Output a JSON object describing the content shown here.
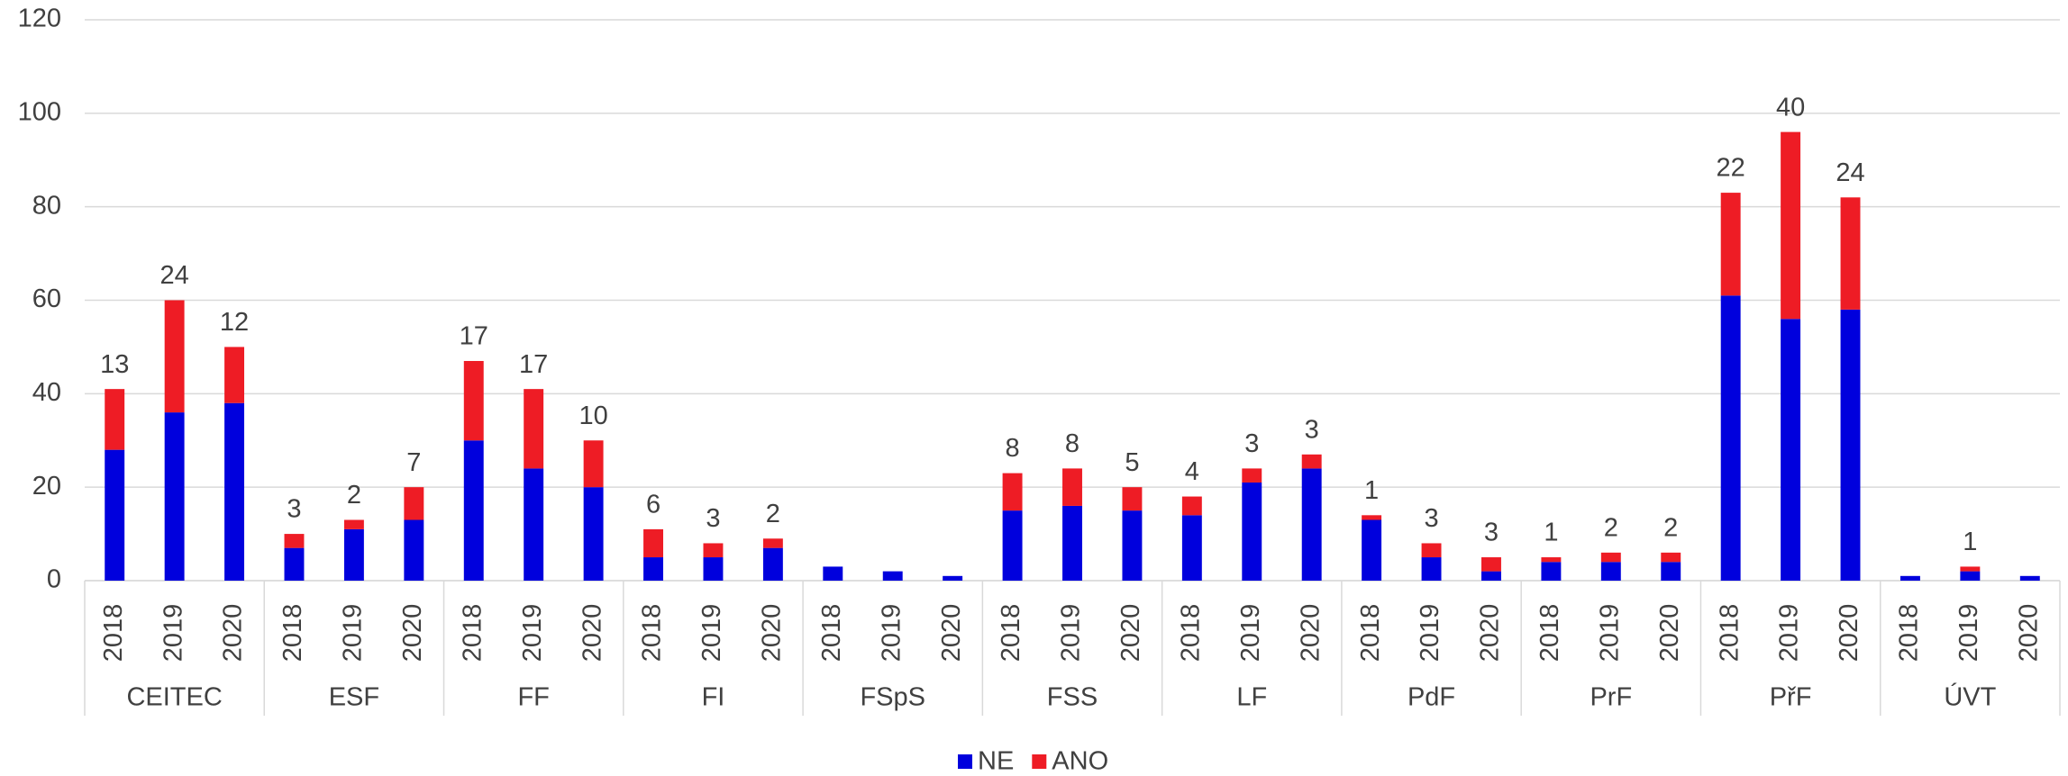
{
  "chart_data": {
    "type": "stacked_bar",
    "groups": [
      "CEITEC",
      "ESF",
      "FF",
      "FI",
      "FSpS",
      "FSS",
      "LF",
      "PdF",
      "PrF",
      "PřF",
      "ÚVT"
    ],
    "categories": [
      "2018",
      "2019",
      "2020",
      "2018",
      "2019",
      "2020",
      "2018",
      "2019",
      "2020",
      "2018",
      "2019",
      "2020",
      "2018",
      "2019",
      "2020",
      "2018",
      "2019",
      "2020",
      "2018",
      "2019",
      "2020",
      "2018",
      "2019",
      "2020",
      "2018",
      "2019",
      "2020",
      "2018",
      "2019",
      "2020",
      "2018",
      "2019",
      "2020"
    ],
    "series": [
      {
        "name": "NE",
        "color": "#0000dd",
        "values": [
          28,
          36,
          38,
          7,
          11,
          13,
          30,
          24,
          20,
          5,
          5,
          7,
          3,
          2,
          1,
          15,
          16,
          15,
          14,
          21,
          24,
          13,
          5,
          2,
          4,
          4,
          4,
          61,
          56,
          58,
          1,
          2,
          1
        ]
      },
      {
        "name": "ANO",
        "color": "#ee1c25",
        "values": [
          13,
          24,
          12,
          3,
          2,
          7,
          17,
          17,
          10,
          6,
          3,
          2,
          null,
          null,
          null,
          8,
          8,
          5,
          4,
          3,
          3,
          1,
          3,
          3,
          1,
          2,
          2,
          22,
          40,
          24,
          null,
          1,
          null
        ]
      }
    ],
    "ylim": [
      0,
      120
    ],
    "yticks": [
      0,
      20,
      40,
      60,
      80,
      100,
      120
    ],
    "grid": true,
    "legend": "bottom"
  }
}
